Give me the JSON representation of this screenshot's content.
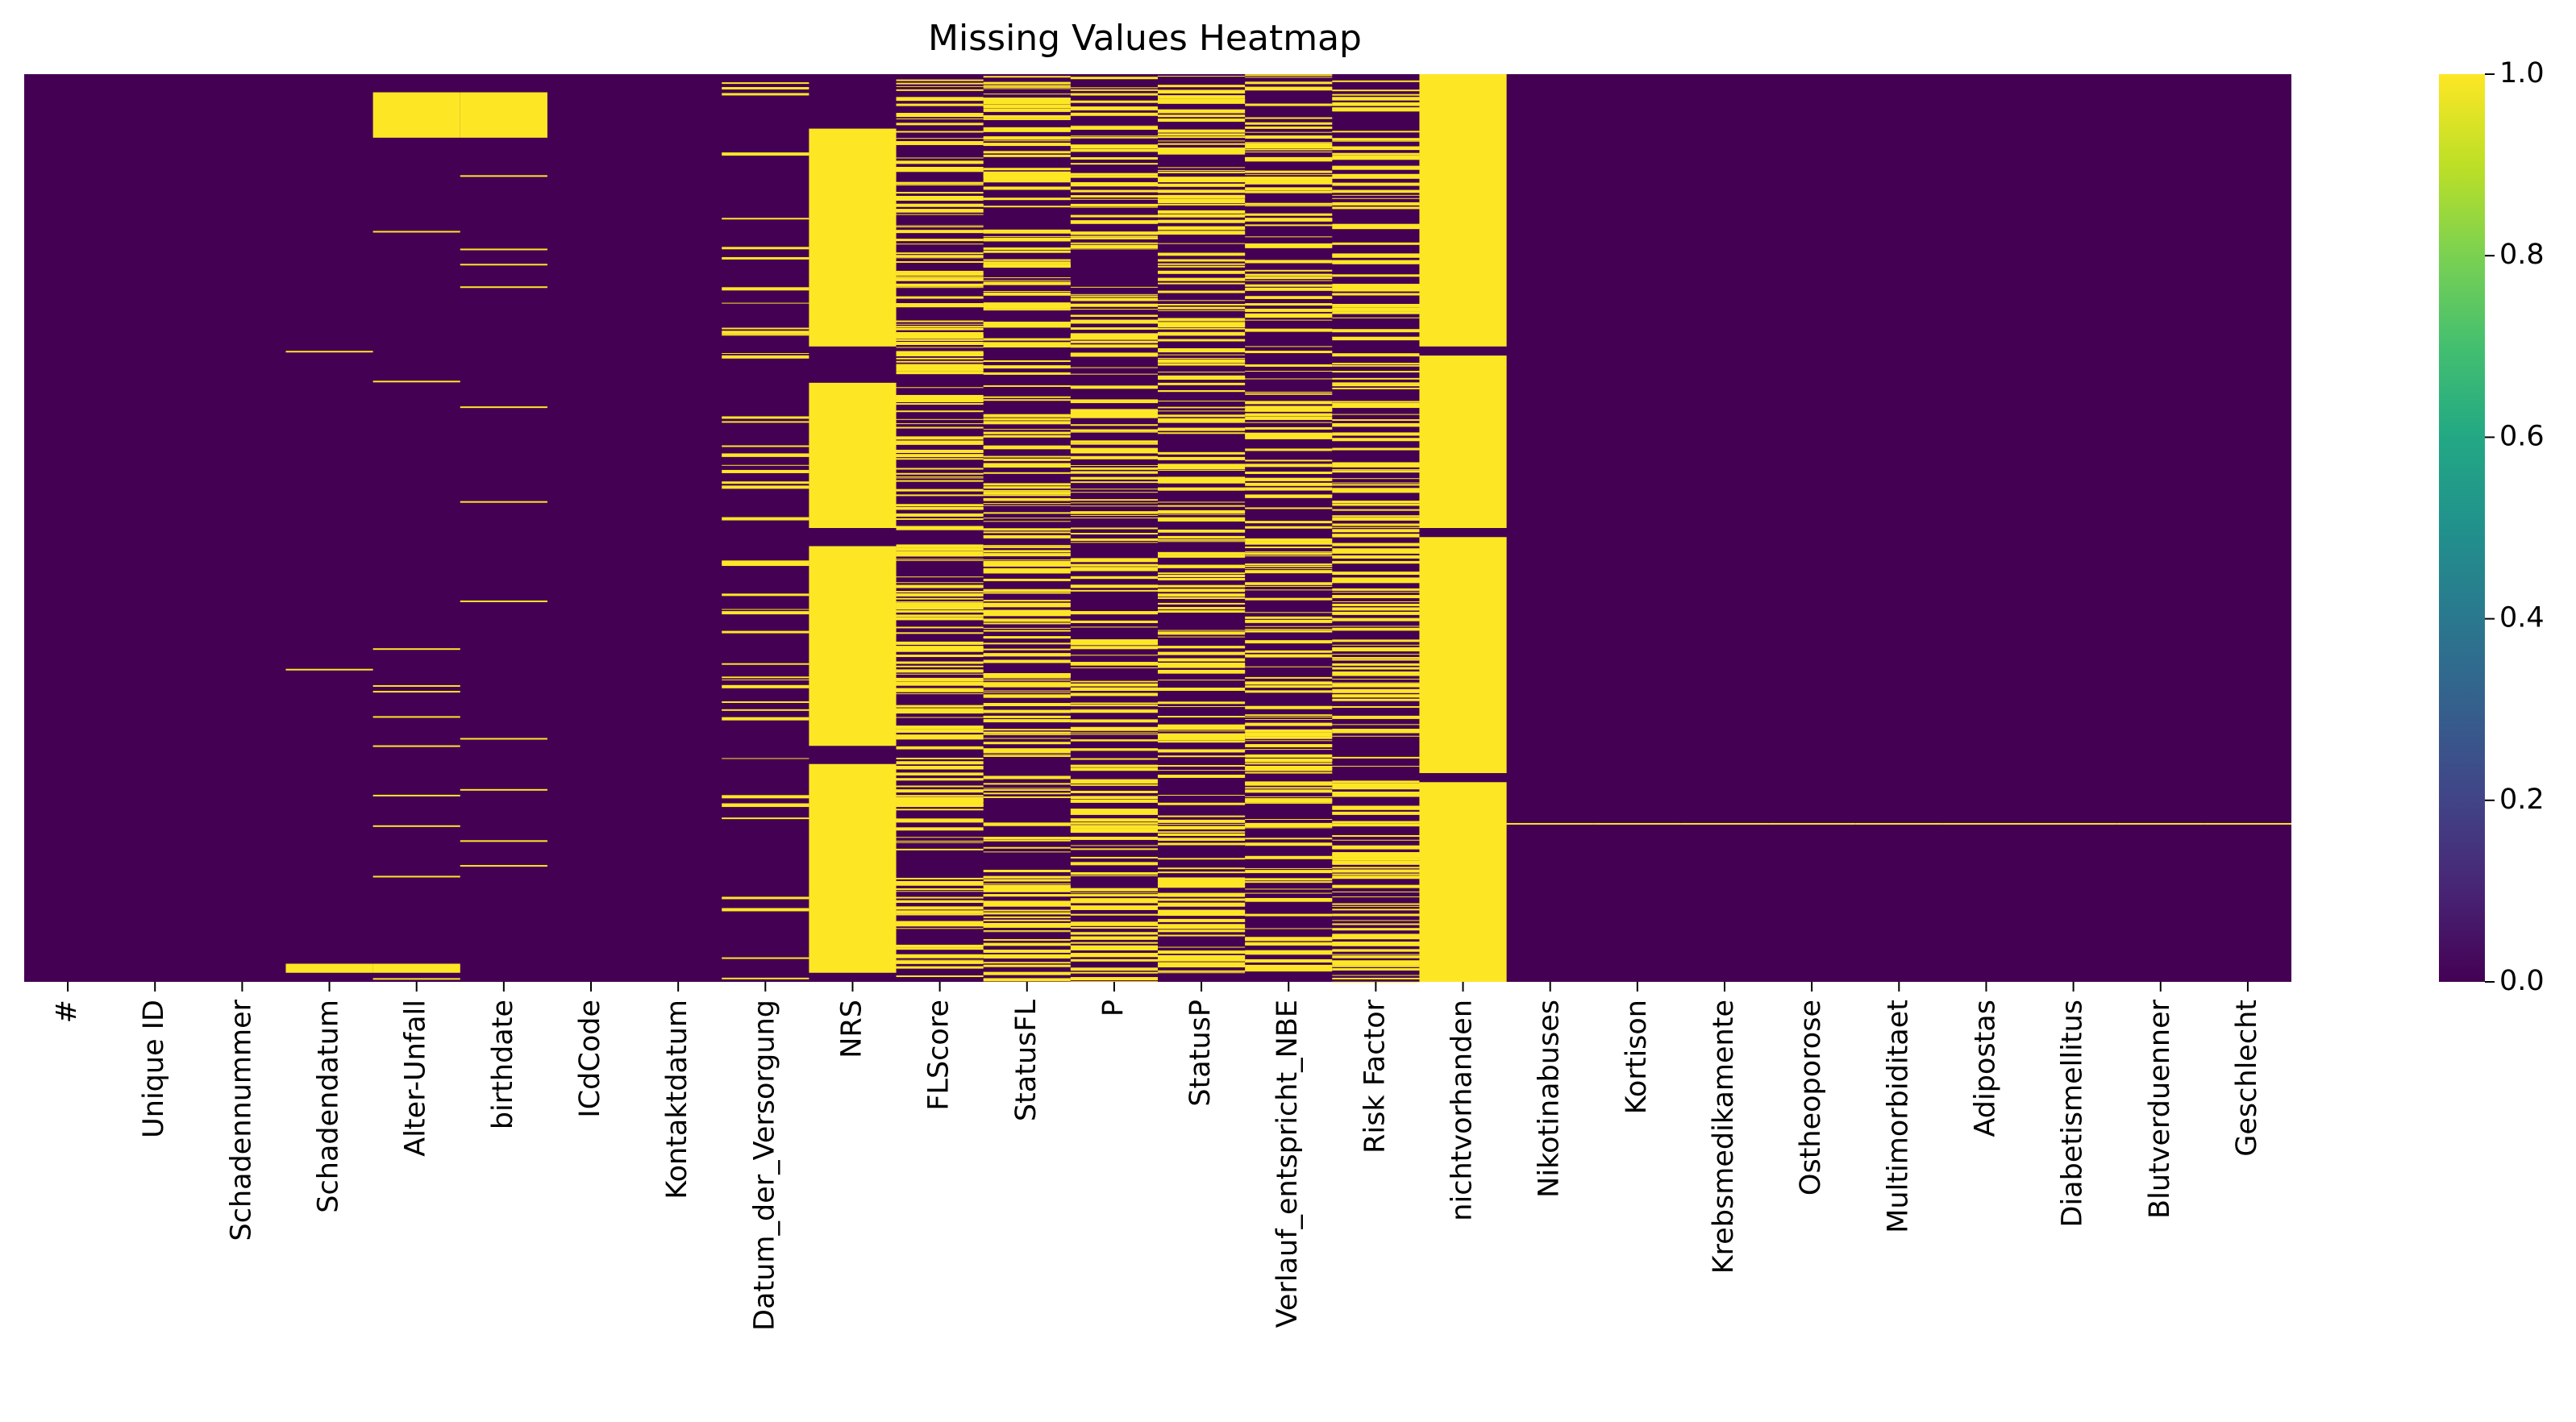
{
  "chart_data": {
    "type": "heatmap",
    "title": "Missing Values Heatmap",
    "xlabel": "",
    "ylabel": "",
    "colormap": "viridis",
    "colorbar": {
      "ticks": [
        "0.0",
        "0.2",
        "0.4",
        "0.6",
        "0.8",
        "1.0"
      ],
      "range": [
        0,
        1
      ]
    },
    "colors": {
      "missing": "#fde725",
      "present": "#440154"
    },
    "columns": [
      "#",
      "Unique ID",
      "Schadennummer",
      "Schadendatum",
      "Alter-Unfall",
      "birthdate",
      "ICdCode",
      "Kontaktdatum",
      "Datum_der_Versorgung",
      "NRS",
      "FLScore",
      "StatusFL",
      "P",
      "StatusP",
      "Verlauf_entspricht_NBE",
      "Risk Factor",
      "nichtvorhanden",
      "Nikotinabuses",
      "Kortison",
      "Krebsmedikamente",
      "Ostheoporose",
      "Multimorbiditaet",
      "Adipostas",
      "Diabetismellitus",
      "Blutverduenner",
      "Geschlecht"
    ],
    "approx_missing_fraction": [
      0.0,
      0.0,
      0.0,
      0.02,
      0.12,
      0.12,
      0.0,
      0.0,
      0.12,
      0.85,
      0.55,
      0.55,
      0.55,
      0.55,
      0.45,
      0.55,
      0.99,
      0.002,
      0.002,
      0.002,
      0.002,
      0.002,
      0.002,
      0.002,
      0.002,
      0.004
    ],
    "missing_bands": {
      "NRS": [
        [
          0.06,
          0.3
        ],
        [
          0.34,
          0.5
        ],
        [
          0.52,
          0.74
        ],
        [
          0.76,
          0.99
        ]
      ],
      "nichtvorhanden": [
        [
          0.0,
          0.3
        ],
        [
          0.31,
          0.5
        ],
        [
          0.51,
          0.77
        ],
        [
          0.78,
          1.0
        ]
      ],
      "Schadendatum": [
        [
          0.98,
          0.99
        ]
      ],
      "Alter-Unfall": [
        [
          0.02,
          0.07
        ],
        [
          0.98,
          0.99
        ]
      ],
      "birthdate": [
        [
          0.02,
          0.07
        ]
      ]
    }
  }
}
